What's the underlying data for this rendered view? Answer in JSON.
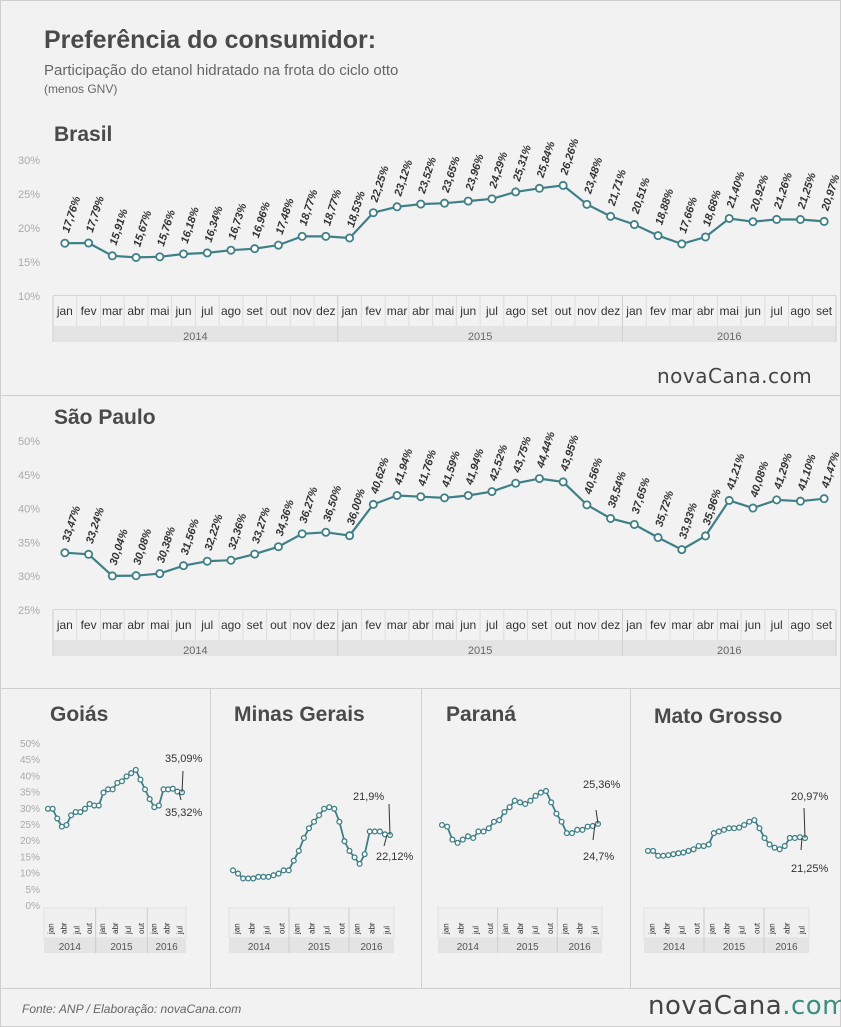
{
  "header": {
    "title": "Preferência do consumidor:",
    "subtitle": "Participação do etanol hidratado na frota do ciclo otto",
    "note": "(menos GNV)"
  },
  "logo": {
    "part1": "nova",
    "part2": "Cana",
    "part3": ".com"
  },
  "footer": {
    "source": "Fonte: ANP  / Elaboração: novaCana.com"
  },
  "colors": {
    "line": "#3f7f86",
    "label": "#333333",
    "axis": "#999999",
    "band": "#e4e4e4"
  },
  "chart_data": [
    {
      "type": "line",
      "title": "Brasil",
      "months": [
        "jan",
        "fev",
        "mar",
        "abr",
        "mai",
        "jun",
        "jul",
        "ago",
        "set",
        "out",
        "nov",
        "dez",
        "jan",
        "fev",
        "mar",
        "abr",
        "mai",
        "jun",
        "jul",
        "ago",
        "set",
        "out",
        "nov",
        "dez",
        "jan",
        "fev",
        "mar",
        "abr",
        "mai",
        "jun",
        "jul",
        "ago",
        "set"
      ],
      "years": [
        "2014",
        "2015",
        "2016"
      ],
      "yticks": [
        "30%",
        "25%",
        "20%",
        "15%",
        "10%"
      ],
      "ylim": [
        10,
        30
      ],
      "values": [
        17.76,
        17.79,
        15.91,
        15.67,
        15.76,
        16.18,
        16.34,
        16.73,
        16.96,
        17.48,
        18.77,
        18.77,
        18.53,
        22.25,
        23.12,
        23.52,
        23.65,
        23.96,
        24.29,
        25.31,
        25.84,
        26.26,
        23.48,
        21.71,
        20.51,
        18.88,
        17.66,
        18.68,
        21.4,
        20.92,
        21.26,
        21.25,
        20.97
      ],
      "labels": [
        "17,76%",
        "17,79%",
        "15,91%",
        "15,67%",
        "15,76%",
        "16,18%",
        "16,34%",
        "16,73%",
        "16,96%",
        "17,48%",
        "18,77%",
        "18,77%",
        "18,53%",
        "22,25%",
        "23,12%",
        "23,52%",
        "23,65%",
        "23,96%",
        "24,29%",
        "25,31%",
        "25,84%",
        "26,26%",
        "23,48%",
        "21,71%",
        "20,51%",
        "18,88%",
        "17,66%",
        "18,68%",
        "21,40%",
        "20,92%",
        "21,26%",
        "21,25%",
        "20,97%"
      ]
    },
    {
      "type": "line",
      "title": "São Paulo",
      "months": [
        "jan",
        "fev",
        "mar",
        "abr",
        "mai",
        "jun",
        "jul",
        "ago",
        "set",
        "out",
        "nov",
        "dez",
        "jan",
        "fev",
        "mar",
        "abr",
        "mai",
        "jun",
        "jul",
        "ago",
        "set",
        "out",
        "nov",
        "dez",
        "jan",
        "fev",
        "mar",
        "abr",
        "mai",
        "jun",
        "jul",
        "ago",
        "set"
      ],
      "years": [
        "2014",
        "2015",
        "2016"
      ],
      "yticks": [
        "50%",
        "45%",
        "40%",
        "35%",
        "30%",
        "25%"
      ],
      "ylim": [
        25,
        50
      ],
      "values": [
        33.47,
        33.24,
        30.04,
        30.08,
        30.38,
        31.56,
        32.22,
        32.36,
        33.27,
        34.36,
        36.27,
        36.5,
        36.0,
        40.62,
        41.94,
        41.76,
        41.59,
        41.94,
        42.52,
        43.75,
        44.44,
        43.95,
        40.56,
        38.54,
        37.65,
        35.72,
        33.93,
        35.96,
        41.21,
        40.08,
        41.29,
        41.1,
        41.47
      ],
      "labels": [
        "33,47%",
        "33,24%",
        "30,04%",
        "30,08%",
        "30,38%",
        "31,56%",
        "32,22%",
        "32,36%",
        "33,27%",
        "34,36%",
        "36,27%",
        "36,50%",
        "36,00%",
        "40,62%",
        "41,94%",
        "41,76%",
        "41,59%",
        "41,94%",
        "42,52%",
        "43,75%",
        "44,44%",
        "43,95%",
        "40,56%",
        "38,54%",
        "37,65%",
        "35,72%",
        "33,93%",
        "35,96%",
        "41,21%",
        "40,08%",
        "41,29%",
        "41,10%",
        "41,47%"
      ]
    },
    {
      "type": "line",
      "title": "Goiás",
      "months": [
        "jan",
        "abr",
        "jul",
        "out",
        "jan",
        "abr",
        "jul",
        "out",
        "jan",
        "abr",
        "jul"
      ],
      "years": [
        "2014",
        "2015",
        "2016"
      ],
      "yticks": [
        "50%",
        "45%",
        "40%",
        "35%",
        "30%",
        "25%",
        "20%",
        "15%",
        "10%",
        "5%",
        "0%"
      ],
      "ylim": [
        0,
        50
      ],
      "values": [
        30,
        30,
        27,
        24.5,
        25,
        28,
        29,
        29,
        30,
        31.5,
        31,
        31,
        35,
        36,
        36,
        38,
        38.5,
        40,
        41,
        42,
        39,
        36,
        33,
        30.5,
        31,
        36,
        36,
        36.2,
        35.32,
        35.09
      ],
      "annotations": [
        "35,09%",
        "35,32%"
      ]
    },
    {
      "type": "line",
      "title": "Minas Gerais",
      "months": [
        "jan",
        "abr",
        "jul",
        "out",
        "jan",
        "abr",
        "jul",
        "out",
        "jan",
        "abr",
        "jul"
      ],
      "years": [
        "2014",
        "2015",
        "2016"
      ],
      "yticks": [],
      "ylim": [
        0,
        50
      ],
      "values": [
        11,
        10,
        8.5,
        8.5,
        8.5,
        9,
        9,
        9,
        9.5,
        10,
        11,
        11,
        14,
        17,
        21,
        24,
        26,
        28,
        30,
        30.5,
        30,
        26,
        20,
        17,
        15,
        13,
        16,
        23,
        23,
        23,
        22.12,
        21.9
      ],
      "annotations": [
        "21,9%",
        "22,12%"
      ]
    },
    {
      "type": "line",
      "title": "Paraná",
      "months": [
        "jan",
        "abr",
        "jul",
        "out",
        "jan",
        "abr",
        "jul",
        "out",
        "jan",
        "abr",
        "jul"
      ],
      "years": [
        "2014",
        "2015",
        "2016"
      ],
      "yticks": [],
      "ylim": [
        0,
        50
      ],
      "values": [
        25,
        24.5,
        20.5,
        19.5,
        20.5,
        21.5,
        21,
        23,
        23,
        24,
        26,
        26.5,
        29,
        30.5,
        32.5,
        32,
        31.5,
        32.5,
        34,
        35,
        35.5,
        32,
        28.5,
        26,
        22.5,
        22.5,
        23.5,
        23.5,
        24.5,
        24.7,
        25.36
      ],
      "annotations": [
        "25,36%",
        "24,7%"
      ]
    },
    {
      "type": "line",
      "title": "Mato Grosso",
      "months": [
        "jan",
        "abr",
        "jul",
        "out",
        "jan",
        "abr",
        "jul",
        "out",
        "jan",
        "abr",
        "jul"
      ],
      "years": [
        "2014",
        "2015",
        "2016"
      ],
      "yticks": [],
      "ylim": [
        0,
        50
      ],
      "values": [
        17,
        17,
        15.5,
        15.5,
        15.7,
        16,
        16.3,
        16.5,
        17,
        17.5,
        18.5,
        18.5,
        19,
        22.5,
        23,
        23.5,
        24,
        24,
        24.2,
        25,
        26,
        26.5,
        24,
        21,
        19,
        18,
        17.5,
        18.5,
        21,
        21,
        21.25,
        20.97
      ],
      "annotations": [
        "20,97%",
        "21,25%"
      ]
    }
  ]
}
